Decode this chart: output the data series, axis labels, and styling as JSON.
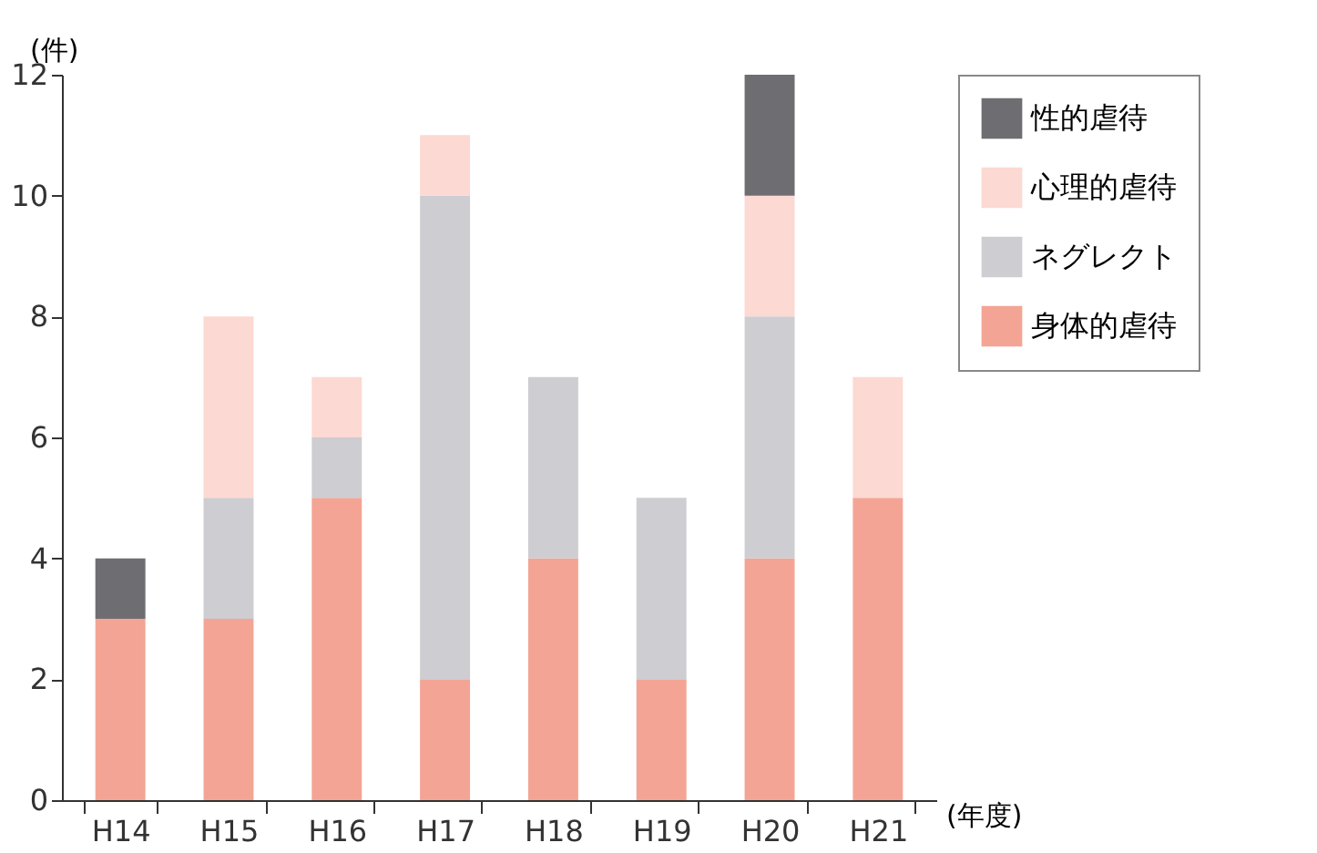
{
  "chart_data": {
    "type": "bar",
    "stacked": true,
    "ylabel": "(件)",
    "xlabel": "(年度)",
    "categories": [
      "H14",
      "H15",
      "H16",
      "H17",
      "H18",
      "H19",
      "H20",
      "H21"
    ],
    "series": [
      {
        "name": "身体的虐待",
        "color": "#f4a494",
        "values": [
          3,
          3,
          5,
          2,
          4,
          2,
          4,
          5
        ]
      },
      {
        "name": "ネグレクト",
        "color": "#cdcdd2",
        "values": [
          0,
          2,
          1,
          8,
          3,
          3,
          4,
          0
        ]
      },
      {
        "name": "心理的虐待",
        "color": "#fcd9d2",
        "values": [
          0,
          3,
          1,
          1,
          0,
          0,
          2,
          2
        ]
      },
      {
        "name": "性的虐待",
        "color": "#6e6e72",
        "values": [
          1,
          0,
          0,
          0,
          0,
          0,
          2,
          0
        ]
      }
    ],
    "ylim": [
      0,
      12
    ],
    "yticks": [
      0,
      2,
      4,
      6,
      8,
      10,
      12
    ],
    "legend": "right",
    "grid": false
  }
}
